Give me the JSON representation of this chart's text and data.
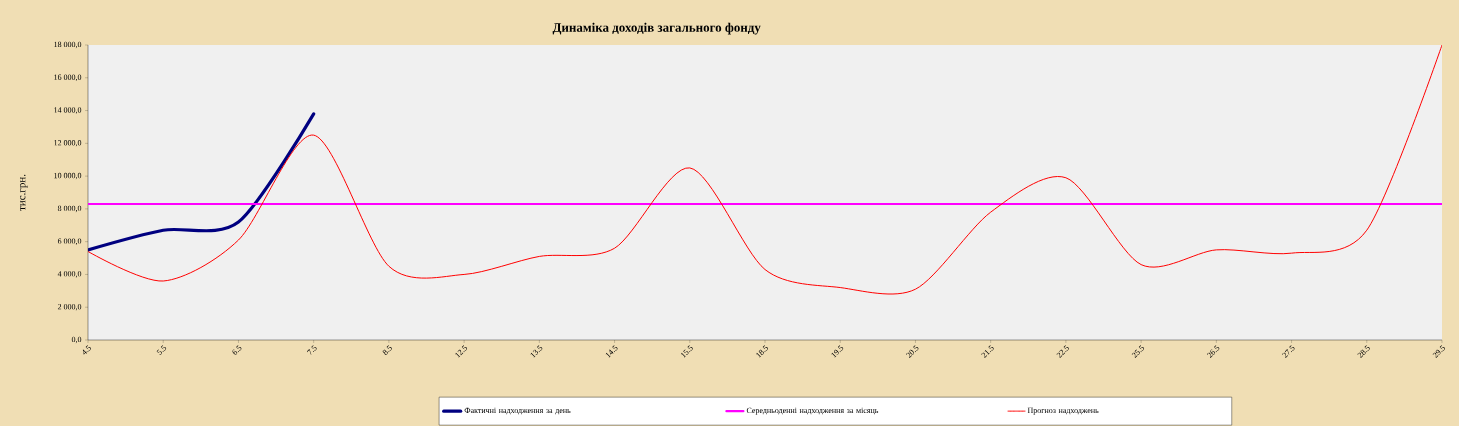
{
  "chart_data": {
    "type": "line",
    "title": "Динаміка доходів загального фонду",
    "ylabel": "тис.грн.",
    "categories": [
      "4.5",
      "5.5",
      "6.5",
      "7.5",
      "8.5",
      "12.5",
      "13.5",
      "14.5",
      "15.5",
      "18.5",
      "19.5",
      "20.5",
      "21.5",
      "22.5",
      "25.5",
      "26.5",
      "27.5",
      "28.5",
      "29.5"
    ],
    "series": [
      {
        "name": "Фактичні надходження за день",
        "color": "#000080",
        "values": [
          5500,
          6700,
          7200,
          13800,
          null,
          null,
          null,
          null,
          null,
          null,
          null,
          null,
          null,
          null,
          null,
          null,
          null,
          null,
          null
        ]
      },
      {
        "name": "Середньоденні надходження за місяць",
        "color": "#ff00ff",
        "values": [
          8300,
          8300,
          8300,
          8300,
          8300,
          8300,
          8300,
          8300,
          8300,
          8300,
          8300,
          8300,
          8300,
          8300,
          8300,
          8300,
          8300,
          8300,
          8300
        ]
      },
      {
        "name": "Прогноз надходжень",
        "color": "#ff0000",
        "values": [
          5400,
          3600,
          6100,
          12500,
          4500,
          4000,
          5100,
          5600,
          10500,
          4300,
          3200,
          3100,
          7800,
          9900,
          4600,
          5500,
          5300,
          6700,
          18000
        ]
      }
    ],
    "ylim": [
      0,
      18000
    ],
    "yticks": [
      {
        "value": 0,
        "label": "0,0"
      },
      {
        "value": 2000,
        "label": "2 000,0"
      },
      {
        "value": 4000,
        "label": "4 000,0"
      },
      {
        "value": 6000,
        "label": "6 000,0"
      },
      {
        "value": 8000,
        "label": "8 000,0"
      },
      {
        "value": 10000,
        "label": "10 000,0"
      },
      {
        "value": 12000,
        "label": "12 000,0"
      },
      {
        "value": 14000,
        "label": "14 000,0"
      },
      {
        "value": 16000,
        "label": "16 000,0"
      },
      {
        "value": 18000,
        "label": "18 000,0"
      }
    ],
    "grid": false,
    "legend": "bottom",
    "marker": "none",
    "line_style": "solid"
  }
}
